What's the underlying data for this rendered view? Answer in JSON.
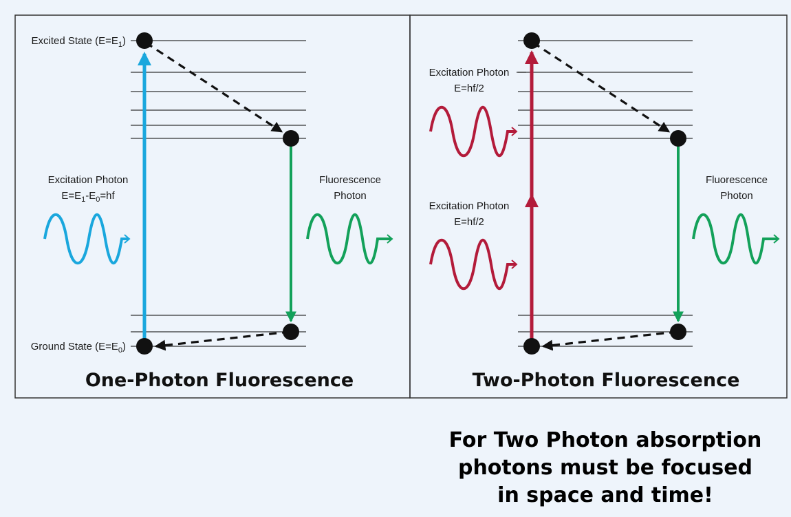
{
  "colors": {
    "background": "#eef4fb",
    "one_photon_excitation": "#1aa7dd",
    "two_photon_excitation": "#b31b3a",
    "fluorescence": "#13a15a",
    "level_line": "#333333",
    "electron": "#111111"
  },
  "one_photon": {
    "title": "One-Photon Fluorescence",
    "excited_state": {
      "prefix": "Excited State (E=E",
      "sub": "1",
      "suffix": ")"
    },
    "ground_state": {
      "prefix": "Ground State (E=E",
      "sub": "0",
      "suffix": ")"
    },
    "excitation": {
      "line1": "Excitation Photon",
      "line2": {
        "a": "E=E",
        "sub1": "1",
        "b": "-E",
        "sub2": "0",
        "c": "=hf"
      }
    },
    "fluorescence": {
      "line1": "Fluorescence",
      "line2": "Photon"
    }
  },
  "two_photon": {
    "title": "Two-Photon Fluorescence",
    "excitation_top": {
      "line1": "Excitation Photon",
      "line2": "E=hf/2"
    },
    "excitation_bottom": {
      "line1": "Excitation Photon",
      "line2": "E=hf/2"
    },
    "fluorescence": {
      "line1": "Fluorescence",
      "line2": "Photon"
    }
  },
  "note": {
    "line1": "For Two Photon absorption",
    "line2": "photons must be focused",
    "line3": "in space and time!"
  }
}
